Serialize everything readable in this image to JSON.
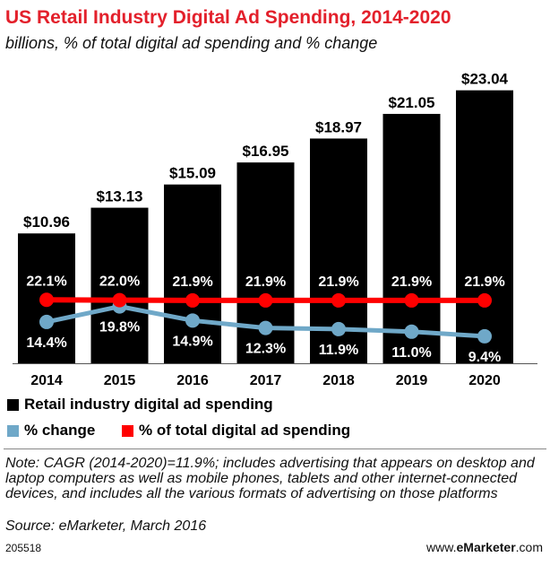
{
  "title": "US Retail Industry Digital Ad Spending, 2014-2020",
  "subtitle": "billions, % of total digital ad spending and % change",
  "chart_data": {
    "type": "bar",
    "categories": [
      "2014",
      "2015",
      "2016",
      "2017",
      "2018",
      "2019",
      "2020"
    ],
    "series": [
      {
        "name": "Retail industry digital ad spending",
        "kind": "bar",
        "values": [
          10.96,
          13.13,
          15.09,
          16.95,
          18.97,
          21.05,
          23.04
        ],
        "labels": [
          "$10.96",
          "$13.13",
          "$15.09",
          "$16.95",
          "$18.97",
          "$21.05",
          "$23.04"
        ],
        "color": "#000000"
      },
      {
        "name": "% change",
        "kind": "line",
        "values": [
          14.4,
          19.8,
          14.9,
          12.3,
          11.9,
          11.0,
          9.4
        ],
        "labels": [
          "14.4%",
          "19.8%",
          "14.9%",
          "12.3%",
          "11.9%",
          "11.0%",
          "9.4%"
        ],
        "color": "#6fa8c8"
      },
      {
        "name": "% of total digital ad spending",
        "kind": "line",
        "values": [
          22.1,
          22.0,
          21.9,
          21.9,
          21.9,
          21.9,
          21.9
        ],
        "labels": [
          "22.1%",
          "22.0%",
          "21.9%",
          "21.9%",
          "21.9%",
          "21.9%",
          "21.9%"
        ],
        "color": "#ff0000"
      }
    ],
    "ylim": [
      0,
      24
    ],
    "grid": false,
    "legend_position": "bottom-left"
  },
  "legend": {
    "bar_label": "Retail industry digital ad spending",
    "change_label": "% change",
    "share_label": "% of total digital ad spending"
  },
  "note": "Note: CAGR (2014-2020)=11.9%; includes advertising that appears on desktop and laptop computers as well as mobile phones, tablets and other internet-connected devices, and includes all the various formats of advertising on those platforms",
  "source": "Source: eMarketer, March 2016",
  "chart_id": "205518",
  "brand": {
    "prefix": "www.",
    "name": "eMarketer",
    "suffix": ".com"
  }
}
